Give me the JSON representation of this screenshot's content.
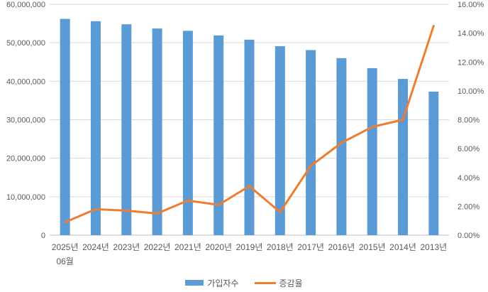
{
  "colors": {
    "bar": "#5B9BD5",
    "line": "#ED7D31",
    "grid": "#D9D9D9",
    "axis_line": "#BFBFBF",
    "label": "#595959"
  },
  "legend": {
    "bar_label": "가입자수",
    "line_label": "증감율"
  },
  "chart_data": {
    "type": "bar",
    "title": "",
    "categories": [
      "2025년",
      "2024년",
      "2023년",
      "2022년",
      "2021년",
      "2020년",
      "2019년",
      "2018년",
      "2017년",
      "2016년",
      "2015년",
      "2014년",
      "2013년"
    ],
    "first_category_subline": "06월",
    "series": [
      {
        "name": "가입자수",
        "type": "bar",
        "axis": "left",
        "values": [
          56200000,
          55600000,
          54800000,
          53700000,
          53100000,
          51900000,
          50800000,
          49100000,
          48100000,
          46000000,
          43400000,
          40600000,
          37300000
        ]
      },
      {
        "name": "증감율",
        "type": "line",
        "axis": "right",
        "values": [
          0.9,
          1.8,
          1.7,
          1.5,
          2.4,
          2.1,
          3.4,
          1.6,
          4.8,
          6.4,
          7.5,
          8.0,
          14.5
        ]
      }
    ],
    "left_axis": {
      "min": 0,
      "max": 60000000,
      "step": 10000000,
      "ticks": [
        "0",
        "10,000,000",
        "20,000,000",
        "30,000,000",
        "40,000,000",
        "50,000,000",
        "60,000,000"
      ]
    },
    "right_axis": {
      "min": 0,
      "max": 16,
      "step": 2,
      "ticks": [
        "0.00%",
        "2.00%",
        "4.00%",
        "6.00%",
        "8.00%",
        "10.00%",
        "12.00%",
        "14.00%",
        "16.00%"
      ]
    },
    "grid": true,
    "legend_position": "bottom"
  }
}
